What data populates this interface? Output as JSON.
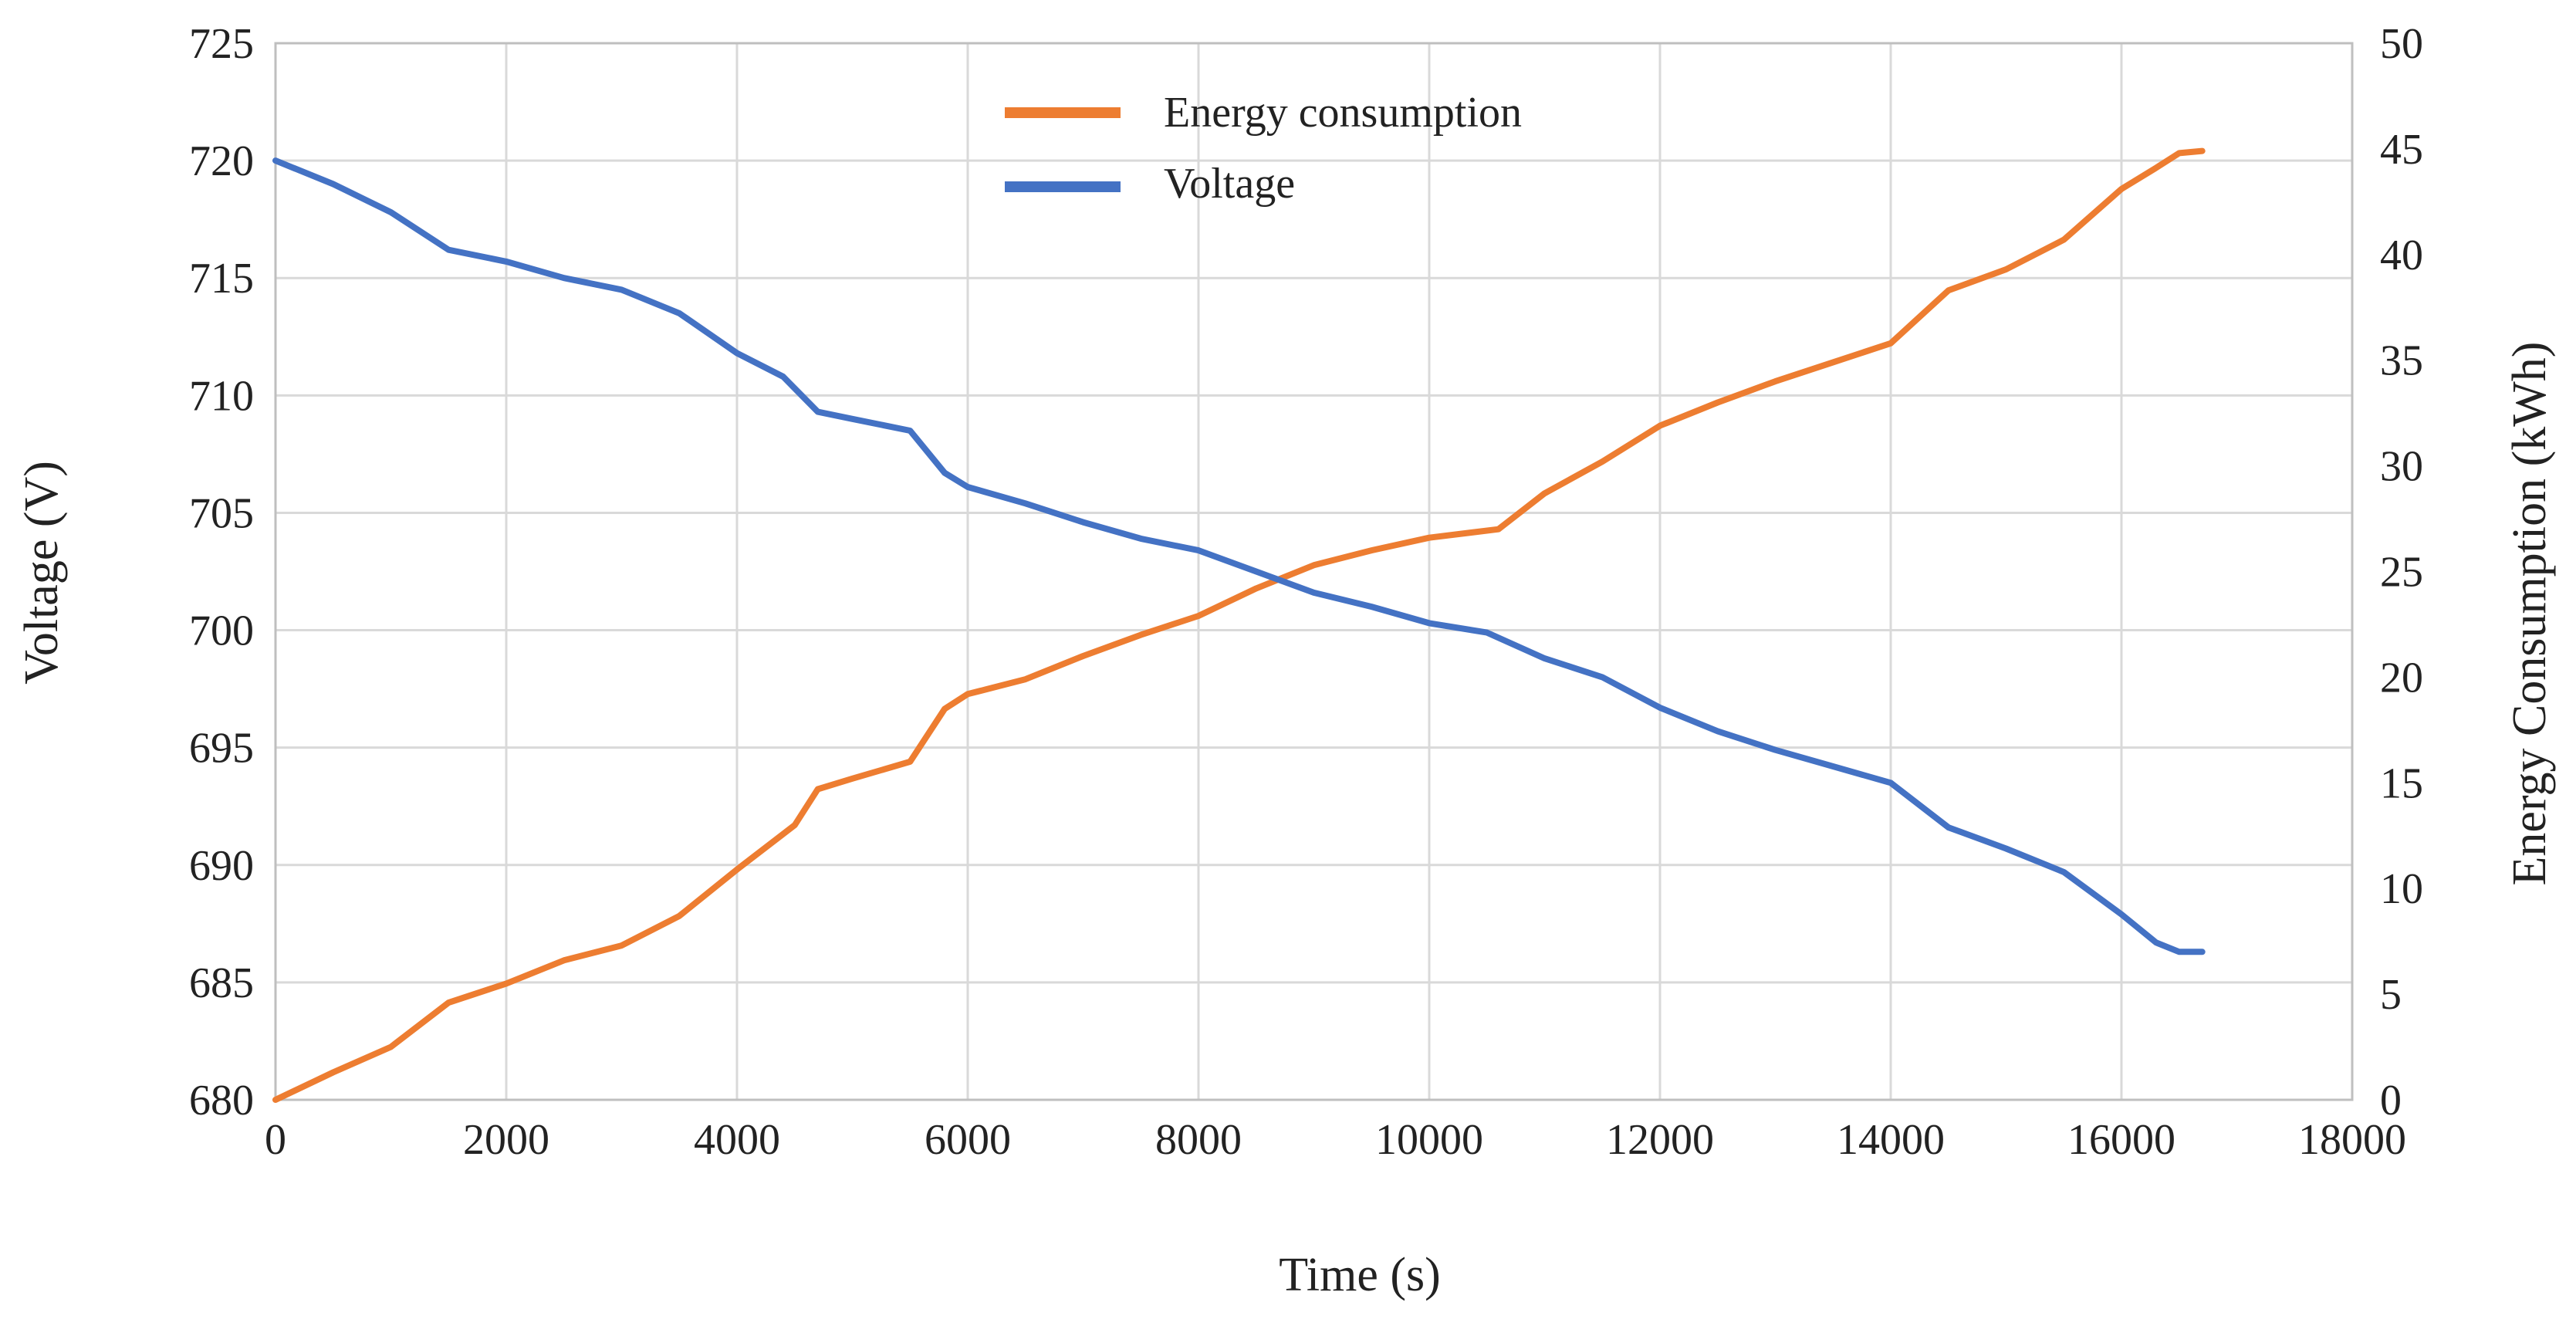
{
  "chart_data": {
    "type": "line",
    "title": "",
    "xlabel": "Time (s)",
    "ylabel": "Voltage (V)",
    "y2label": "Energy Consumption (kWh)",
    "xlim": [
      0,
      18000
    ],
    "ylim": [
      680,
      725
    ],
    "y2lim": [
      0,
      50
    ],
    "x_ticks": [
      "0",
      "2000",
      "4000",
      "6000",
      "8000",
      "10000",
      "12000",
      "14000",
      "16000",
      "18000"
    ],
    "y_ticks": [
      "680",
      "685",
      "690",
      "695",
      "700",
      "705",
      "710",
      "715",
      "720",
      "725"
    ],
    "y2_ticks": [
      "0",
      "5",
      "10",
      "15",
      "20",
      "25",
      "30",
      "35",
      "40",
      "45",
      "50"
    ],
    "grid": true,
    "legend_position": "top-center",
    "series": [
      {
        "name": "Energy consumption",
        "axis": "right",
        "color": "#ed7d31",
        "x": [
          0,
          500,
          1000,
          1500,
          2000,
          2500,
          3000,
          3500,
          4000,
          4500,
          4700,
          5000,
          5500,
          5800,
          6000,
          6500,
          7000,
          7500,
          8000,
          8500,
          9000,
          9500,
          10000,
          10600,
          11000,
          11500,
          12000,
          12500,
          13000,
          13500,
          14000,
          14500,
          15000,
          15500,
          16000,
          16300,
          16500,
          16700
        ],
        "values": [
          0,
          1.3,
          2.5,
          4.6,
          5.5,
          6.6,
          7.3,
          8.7,
          10.9,
          13.0,
          14.7,
          15.2,
          16.0,
          18.5,
          19.2,
          19.9,
          21.0,
          22.0,
          22.9,
          24.2,
          25.3,
          26.0,
          26.6,
          27.0,
          28.7,
          30.2,
          31.9,
          33.0,
          34.0,
          34.9,
          35.8,
          38.3,
          39.3,
          40.7,
          43.1,
          44.1,
          44.8,
          44.9
        ]
      },
      {
        "name": "Voltage",
        "axis": "left",
        "color": "#4472c4",
        "x": [
          0,
          500,
          1000,
          1500,
          2000,
          2500,
          3000,
          3500,
          4000,
          4400,
          4700,
          5000,
          5500,
          5800,
          6000,
          6500,
          7000,
          7500,
          8000,
          8500,
          9000,
          9500,
          10000,
          10500,
          11000,
          11500,
          12000,
          12500,
          13000,
          13500,
          14000,
          14500,
          15000,
          15500,
          16000,
          16300,
          16500,
          16700
        ],
        "values": [
          720,
          719.0,
          717.8,
          716.2,
          715.7,
          715.0,
          714.5,
          713.5,
          711.8,
          710.8,
          709.3,
          709.0,
          708.5,
          706.7,
          706.1,
          705.4,
          704.6,
          703.9,
          703.4,
          702.5,
          701.6,
          701.0,
          700.3,
          699.9,
          698.8,
          698.0,
          696.7,
          695.7,
          694.9,
          694.2,
          693.5,
          691.6,
          690.7,
          689.7,
          687.9,
          686.7,
          686.3,
          686.3
        ]
      }
    ]
  }
}
